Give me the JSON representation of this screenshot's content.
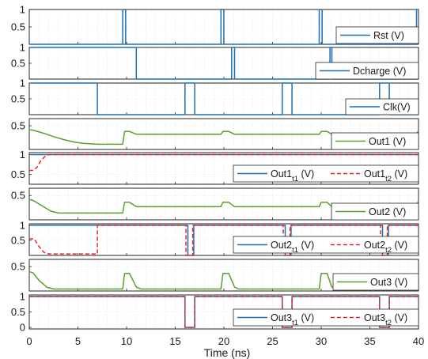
{
  "colors": {
    "blue": "#1f6fb2",
    "green": "#5aa02c",
    "red": "#e8252a",
    "grid": "#d9d9d9",
    "axis": "#262626"
  },
  "chart_data": {
    "type": "line",
    "xlabel": "Time (ns)",
    "xlim": [
      0,
      40
    ],
    "xticks": [
      "0",
      "5",
      "10",
      "15",
      "20",
      "25",
      "30",
      "35",
      "40"
    ],
    "grid": true,
    "panels": [
      {
        "id": "rst",
        "ylim": [
          0,
          1
        ],
        "yticks": [
          {
            "v": 1,
            "t": "1"
          },
          {
            "v": 0.5,
            "t": "0.5"
          }
        ],
        "legend": "top-right",
        "series": [
          {
            "name": "Rst (V)",
            "color": "blue",
            "style": "solid",
            "x": [
              0,
              9.6,
              9.6,
              9.9,
              9.9,
              19.7,
              19.7,
              20.0,
              20.0,
              29.8,
              29.8,
              30.1,
              30.1,
              39.8,
              39.8,
              40
            ],
            "y": [
              0,
              0,
              1,
              1,
              0,
              0,
              1,
              1,
              0,
              0,
              1,
              1,
              0,
              0,
              1,
              1
            ]
          }
        ]
      },
      {
        "id": "dcharge",
        "ylim": [
          0,
          1
        ],
        "yticks": [
          {
            "v": 1,
            "t": "1"
          },
          {
            "v": 0.5,
            "t": "0.5"
          }
        ],
        "legend": "bottom-right",
        "series": [
          {
            "name": "Dcharge (V)",
            "color": "blue",
            "style": "solid",
            "x": [
              0,
              11.0,
              11.0,
              20.8,
              20.8,
              21.1,
              21.1,
              30.9,
              30.9,
              31.1,
              31.1,
              40
            ],
            "y": [
              1,
              1,
              0,
              0,
              1,
              1,
              0,
              0,
              1,
              1,
              0,
              0
            ]
          }
        ]
      },
      {
        "id": "clk",
        "ylim": [
          0,
          1
        ],
        "yticks": [
          {
            "v": 1,
            "t": "1"
          },
          {
            "v": 0.5,
            "t": "0.5"
          }
        ],
        "legend": "bottom-right",
        "series": [
          {
            "name": "Clk(V)",
            "color": "blue",
            "style": "solid",
            "x": [
              0,
              7.0,
              7.0,
              16.0,
              16.0,
              17.0,
              17.0,
              26.0,
              26.0,
              27.0,
              27.0,
              36.0,
              36.0,
              37.0,
              37.0,
              40
            ],
            "y": [
              1,
              1,
              0,
              0,
              1,
              1,
              0,
              0,
              1,
              1,
              0,
              0,
              1,
              1,
              0,
              0
            ]
          }
        ]
      },
      {
        "id": "out1",
        "ylim": [
          0,
          0.65
        ],
        "yticks": [
          {
            "v": 0.5,
            "t": "0.5"
          }
        ],
        "legend": "bottom-right",
        "series": [
          {
            "name": "Out1 (V)",
            "color": "green",
            "style": "solid",
            "x": [
              0,
              0.5,
              1.5,
              2.5,
              3.5,
              4.5,
              5.5,
              7.0,
              9.6,
              9.8,
              10.3,
              11.0,
              11.5,
              19.7,
              19.9,
              20.5,
              21.1,
              21.5,
              29.8,
              30.0,
              30.6,
              31.1,
              31.5,
              39.8,
              40
            ],
            "y": [
              0.42,
              0.4,
              0.34,
              0.27,
              0.21,
              0.16,
              0.13,
              0.11,
              0.11,
              0.38,
              0.38,
              0.32,
              0.32,
              0.32,
              0.38,
              0.38,
              0.32,
              0.32,
              0.32,
              0.38,
              0.38,
              0.32,
              0.32,
              0.32,
              0.4
            ]
          }
        ]
      },
      {
        "id": "out1t",
        "ylim": [
          0.25,
          1.05
        ],
        "yticks": [
          {
            "v": 1,
            "t": "1"
          },
          {
            "v": 0.5,
            "t": "0.5"
          }
        ],
        "legend": "bottom-right",
        "series": [
          {
            "name": "Out1",
            "sub": "t1",
            "unit": " (V)",
            "color": "blue",
            "style": "solid",
            "x": [
              0,
              40
            ],
            "y": [
              1,
              1
            ]
          },
          {
            "name": "Out1",
            "sub": "t2",
            "unit": " (V)",
            "color": "red",
            "style": "dash",
            "x": [
              0,
              0.4,
              0.8,
              1.2,
              1.6,
              2.0,
              40
            ],
            "y": [
              0.6,
              0.6,
              0.68,
              0.85,
              0.95,
              1,
              1
            ]
          }
        ]
      },
      {
        "id": "out2",
        "ylim": [
          0,
          0.65
        ],
        "yticks": [
          {
            "v": 0.5,
            "t": "0.5"
          }
        ],
        "legend": "bottom-right",
        "series": [
          {
            "name": "Out2 (V)",
            "color": "green",
            "style": "solid",
            "x": [
              0,
              0.4,
              1.2,
              2.2,
              3.0,
              9.6,
              9.8,
              10.3,
              11.0,
              11.5,
              19.7,
              19.9,
              20.5,
              21.1,
              21.5,
              29.8,
              30.0,
              30.6,
              31.1,
              31.5,
              39.8,
              40
            ],
            "y": [
              0.42,
              0.4,
              0.3,
              0.18,
              0.14,
              0.14,
              0.36,
              0.36,
              0.27,
              0.27,
              0.27,
              0.36,
              0.36,
              0.27,
              0.27,
              0.27,
              0.36,
              0.36,
              0.27,
              0.27,
              0.27,
              0.4
            ]
          }
        ]
      },
      {
        "id": "out2t",
        "ylim": [
          0,
          1.05
        ],
        "yticks": [
          {
            "v": 1,
            "t": "1"
          },
          {
            "v": 0.5,
            "t": "0.5"
          }
        ],
        "legend": "bottom-right",
        "series": [
          {
            "name": "Out2",
            "sub": "t1",
            "unit": " (V)",
            "color": "blue",
            "style": "solid",
            "x": [
              0,
              16.3,
              16.3,
              16.9,
              16.9,
              26.3,
              26.3,
              26.9,
              26.9,
              36.3,
              36.3,
              36.9,
              36.9,
              40
            ],
            "y": [
              1,
              1,
              0,
              0,
              1,
              1,
              0,
              0,
              1,
              1,
              0,
              0,
              1,
              1
            ]
          },
          {
            "name": "Out2",
            "sub": "t2",
            "unit": " (V)",
            "color": "red",
            "style": "dash",
            "x": [
              0,
              0.5,
              1.0,
              1.5,
              2.0,
              7.0,
              7.0,
              16.1,
              16.1,
              16.8,
              16.8,
              26.1,
              26.1,
              26.8,
              26.8,
              36.1,
              36.1,
              36.8,
              36.8,
              40
            ],
            "y": [
              0.55,
              0.55,
              0.3,
              0.1,
              0.05,
              0.05,
              1,
              1,
              0,
              0,
              1,
              1,
              0,
              0,
              1,
              1,
              0,
              0,
              1,
              1
            ]
          }
        ]
      },
      {
        "id": "out3",
        "ylim": [
          0,
          0.65
        ],
        "yticks": [
          {
            "v": 0.5,
            "t": "0.5"
          }
        ],
        "legend": "bottom-right",
        "series": [
          {
            "name": "Out3 (V)",
            "color": "green",
            "style": "solid",
            "x": [
              0,
              0.4,
              1.0,
              1.8,
              2.5,
              9.6,
              9.8,
              10.3,
              11.0,
              11.5,
              19.7,
              19.9,
              20.5,
              21.1,
              21.5,
              29.8,
              30.0,
              30.6,
              31.1,
              31.5,
              39.8,
              40
            ],
            "y": [
              0.4,
              0.37,
              0.22,
              0.08,
              0.04,
              0.04,
              0.36,
              0.36,
              0.08,
              0.04,
              0.04,
              0.36,
              0.36,
              0.08,
              0.04,
              0.04,
              0.36,
              0.36,
              0.08,
              0.04,
              0.04,
              0.38
            ]
          }
        ]
      },
      {
        "id": "out3t",
        "ylim": [
          -0.05,
          1.05
        ],
        "yticks": [
          {
            "v": 1,
            "t": "1"
          },
          {
            "v": 0.5,
            "t": "0.5"
          },
          {
            "v": 0,
            "t": "0"
          }
        ],
        "legend": "bottom-right",
        "series": [
          {
            "name": "Out3",
            "sub": "t1",
            "unit": " (V)",
            "color": "blue",
            "style": "solid",
            "x": [
              0,
              16.0,
              16.0,
              17.0,
              17.0,
              26.0,
              26.0,
              27.0,
              27.0,
              36.0,
              36.0,
              37.0,
              37.0,
              40
            ],
            "y": [
              1,
              1,
              0,
              0,
              1,
              1,
              0,
              0,
              1,
              1,
              0,
              0,
              1,
              1
            ]
          },
          {
            "name": "Out3",
            "sub": "t2",
            "unit": " (V)",
            "color": "red",
            "style": "dash",
            "x": [
              0,
              16.0,
              16.0,
              17.0,
              17.0,
              26.0,
              26.0,
              27.0,
              27.0,
              36.0,
              36.0,
              37.0,
              37.0,
              40
            ],
            "y": [
              1,
              1,
              0,
              0,
              1,
              1,
              0,
              0,
              1,
              1,
              0,
              0,
              1,
              1
            ]
          }
        ]
      }
    ]
  }
}
